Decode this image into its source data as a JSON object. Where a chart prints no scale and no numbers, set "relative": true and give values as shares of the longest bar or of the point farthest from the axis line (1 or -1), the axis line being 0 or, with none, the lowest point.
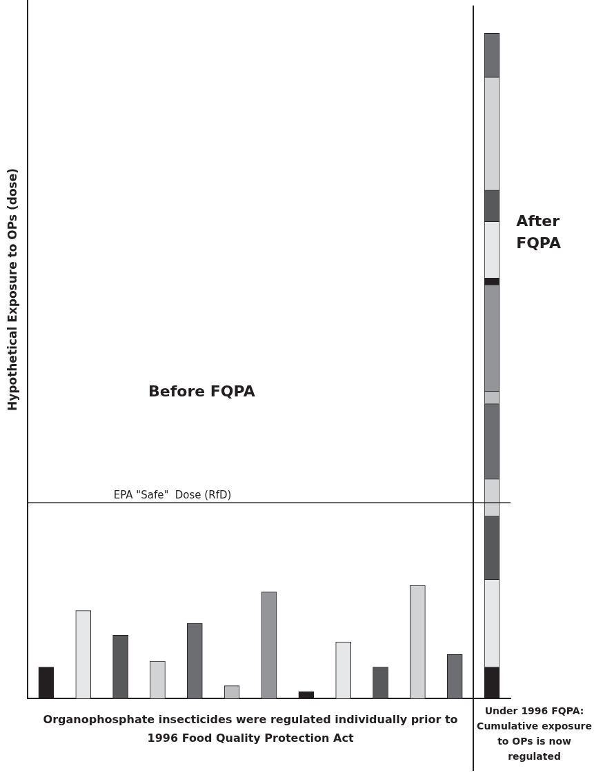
{
  "chart_data": {
    "type": "bar",
    "relative": true,
    "stacked": true,
    "ylabel": "Hypothetical Exposure to OPs (dose)",
    "categories": [
      null,
      null,
      null,
      null,
      null,
      null,
      null,
      null,
      null,
      null,
      null,
      null,
      null
    ],
    "series": [
      {
        "color": "#231f20",
        "values": [
          0.047,
          null,
          null,
          null,
          null,
          null,
          null,
          null,
          null,
          null,
          null,
          null,
          0.047
        ]
      },
      {
        "color": "#e6e7e8",
        "values": [
          null,
          0.132,
          null,
          null,
          null,
          null,
          null,
          null,
          null,
          null,
          null,
          null,
          0.132
        ]
      },
      {
        "color": "#58595b",
        "values": [
          null,
          null,
          0.095,
          null,
          null,
          null,
          null,
          null,
          null,
          null,
          null,
          null,
          0.095
        ]
      },
      {
        "color": "#d1d3d4",
        "values": [
          null,
          null,
          null,
          0.056,
          null,
          null,
          null,
          null,
          null,
          null,
          null,
          null,
          0.056
        ]
      },
      {
        "color": "#6d6e71",
        "values": [
          null,
          null,
          null,
          null,
          0.113,
          null,
          null,
          null,
          null,
          null,
          null,
          null,
          0.113
        ]
      },
      {
        "color": "#bcbec0",
        "values": [
          null,
          null,
          null,
          null,
          null,
          0.019,
          null,
          null,
          null,
          null,
          null,
          null,
          0.019
        ]
      },
      {
        "color": "#939598",
        "values": [
          null,
          null,
          null,
          null,
          null,
          null,
          0.16,
          null,
          null,
          null,
          null,
          null,
          0.16
        ]
      },
      {
        "color": "#231f20",
        "values": [
          null,
          null,
          null,
          null,
          null,
          null,
          null,
          0.01,
          null,
          null,
          null,
          null,
          0.01
        ]
      },
      {
        "color": "#e6e7e8",
        "values": [
          null,
          null,
          null,
          null,
          null,
          null,
          null,
          null,
          0.085,
          null,
          null,
          null,
          0.085
        ]
      },
      {
        "color": "#58595b",
        "values": [
          null,
          null,
          null,
          null,
          null,
          null,
          null,
          null,
          null,
          0.047,
          null,
          null,
          0.047
        ]
      },
      {
        "color": "#d1d3d4",
        "values": [
          null,
          null,
          null,
          null,
          null,
          null,
          null,
          null,
          null,
          null,
          0.17,
          null,
          0.17
        ]
      },
      {
        "color": "#6d6e71",
        "values": [
          null,
          null,
          null,
          null,
          null,
          null,
          null,
          null,
          null,
          null,
          null,
          0.066,
          0.066
        ]
      }
    ],
    "ref_lines": [
      {
        "axis": "y",
        "value": 0.294,
        "label": "EPA \"Safe\"  Dose (RfD)"
      }
    ],
    "annotations": [
      "Before FQPA",
      "After FQPA",
      "Organophosphate insecticides were regulated individually prior to 1996 Food Quality Protection Act",
      "Under 1996 FQPA: Cumulative exposure to OPs is now regulated"
    ],
    "legend": false,
    "grid": false
  }
}
